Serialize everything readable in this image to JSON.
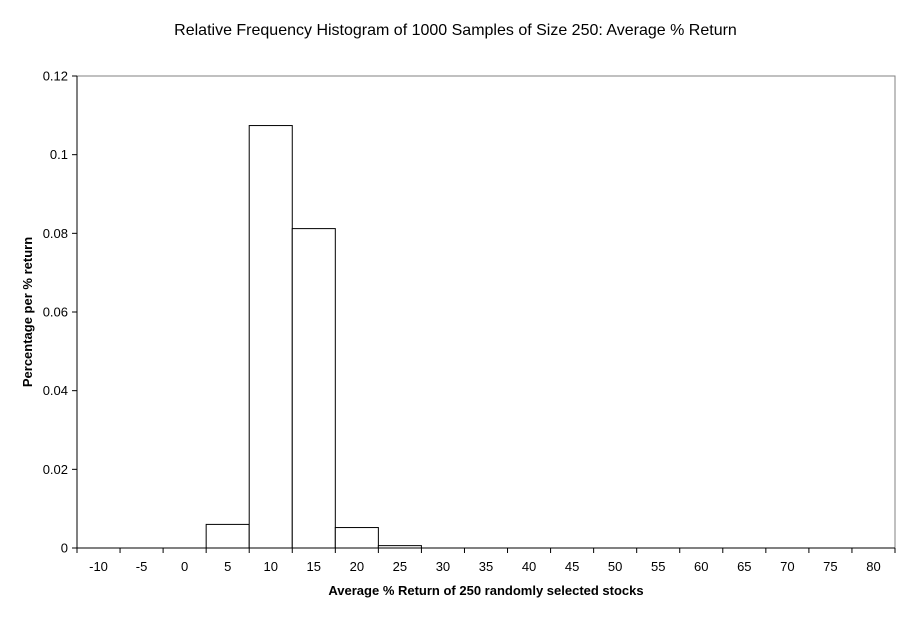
{
  "chart_data": {
    "type": "bar",
    "title": "Relative Frequency Histogram of 1000 Samples of Size 250: Average % Return",
    "xlabel": "Average % Return of 250 randomly selected stocks",
    "ylabel": "Percentage per % return",
    "categories": [
      "-10",
      "-5",
      "0",
      "5",
      "10",
      "15",
      "20",
      "25",
      "30",
      "35",
      "40",
      "45",
      "50",
      "55",
      "60",
      "65",
      "70",
      "75",
      "80"
    ],
    "values": [
      0,
      0,
      0,
      0.006,
      0.1074,
      0.0812,
      0.0052,
      0.0006,
      0,
      0,
      0,
      0,
      0,
      0,
      0,
      0,
      0,
      0,
      0
    ],
    "ylim": [
      0,
      0.12
    ],
    "yticks": [
      "0",
      "0.02",
      "0.04",
      "0.06",
      "0.08",
      "0.1",
      "0.12"
    ],
    "grid": false,
    "legend": "none"
  }
}
